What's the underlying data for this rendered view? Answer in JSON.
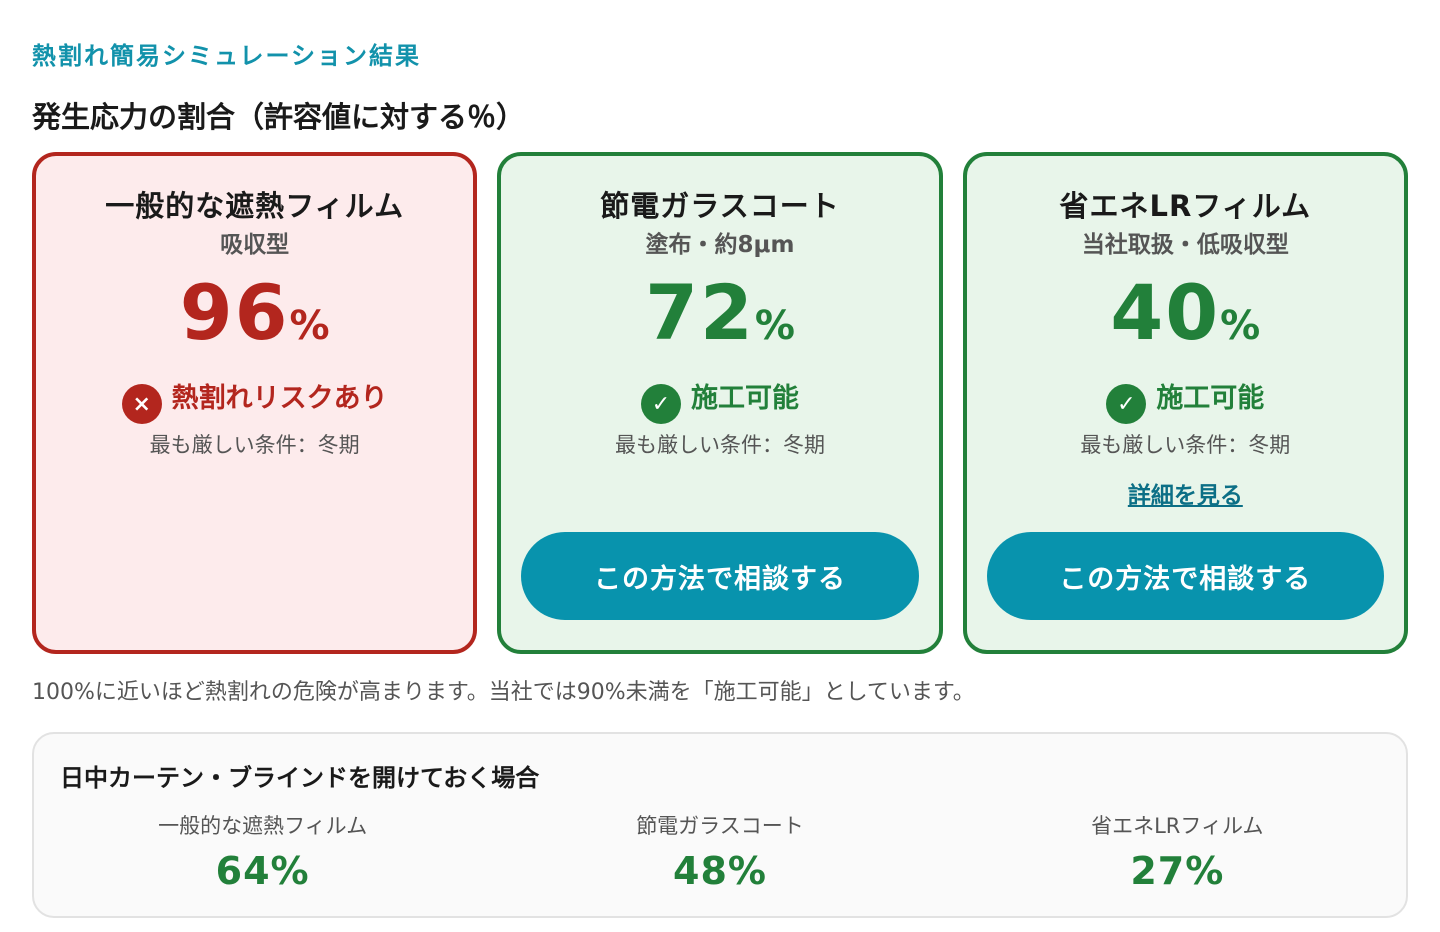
{
  "header": {
    "eyebrow": "熱割れ簡易シミュレーション結果",
    "section_title": "発生応力の割合（許容値に対する％）"
  },
  "cards": [
    {
      "title": "一般的な遮熱フィルム",
      "subtitle": "吸収型",
      "value": "96",
      "unit": "%",
      "status_icon": "×",
      "status_icon_name": "x-circle-icon",
      "status_text": "熱割れリスクあり",
      "condition": "最も厳しい条件：冬期",
      "state": "risk"
    },
    {
      "title": "節電ガラスコート",
      "subtitle": "塗布・約8μm",
      "value": "72",
      "unit": "%",
      "status_icon": "✓",
      "status_icon_name": "check-circle-icon",
      "status_text": "施工可能",
      "condition": "最も厳しい条件：冬期",
      "button_label": "この方法で相談する",
      "state": "ok"
    },
    {
      "title": "省エネLRフィルム",
      "subtitle": "当社取扱・低吸収型",
      "value": "40",
      "unit": "%",
      "status_icon": "✓",
      "status_icon_name": "check-circle-icon",
      "status_text": "施工可能",
      "condition": "最も厳しい条件：冬期",
      "link_label": "詳細を見る",
      "button_label": "この方法で相談する",
      "state": "ok"
    }
  ],
  "note": "100%に近いほど熱割れの危険が高まります。当社では90%未満を「施工可能」としています。",
  "daytime": {
    "title": "日中カーテン・ブラインドを開けておく場合",
    "items": [
      {
        "label": "一般的な遮熱フィルム",
        "value": "64%"
      },
      {
        "label": "節電ガラスコート",
        "value": "48%"
      },
      {
        "label": "省エネLRフィルム",
        "value": "27%"
      }
    ]
  },
  "colors": {
    "accent": "#0893ad",
    "risk": "#b3261e",
    "ok": "#22803a",
    "risk_bg": "#fdebec",
    "ok_bg": "#e8f5ea"
  }
}
